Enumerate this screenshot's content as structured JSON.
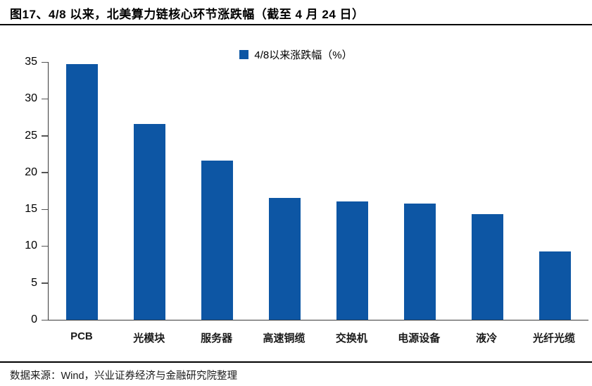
{
  "header": {
    "title": "图17、4/8 以来，北美算力链核心环节涨跌幅（截至 4 月 24 日）"
  },
  "chart_data": {
    "type": "bar",
    "title": "图17、4/8 以来，北美算力链核心环节涨跌幅（截至 4 月 24 日）",
    "legend": "4/8以来涨跌幅（%）",
    "legend_position": "top-center",
    "categories": [
      "PCB",
      "光模块",
      "服务器",
      "高速铜缆",
      "交换机",
      "电源设备",
      "液冷",
      "光纤光缆"
    ],
    "values": [
      34.7,
      26.6,
      21.6,
      16.5,
      16.1,
      15.8,
      14.3,
      9.3
    ],
    "xlabel": "",
    "ylabel": "",
    "ylim": [
      0,
      35
    ],
    "yticks": [
      0,
      5,
      10,
      15,
      20,
      25,
      30,
      35
    ],
    "grid": false,
    "bar_color": "#0D56A4",
    "axis_color": "#3a3a3a"
  },
  "footer": {
    "source": "数据来源：Wind，兴业证券经济与金融研究院整理"
  }
}
